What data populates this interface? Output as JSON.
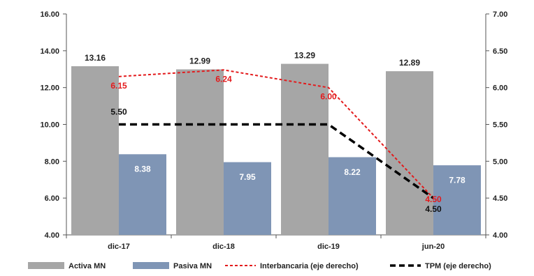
{
  "chart_data": {
    "type": "bar",
    "categories": [
      "dic-17",
      "dic-18",
      "dic-19",
      "jun-20"
    ],
    "series": [
      {
        "name": "Activa MN",
        "kind": "bar",
        "axis": "left",
        "color": "#a6a6a6",
        "label_color": "#222222",
        "label_pos": "above",
        "values": [
          13.16,
          12.99,
          13.29,
          12.89
        ],
        "labels": [
          "13.16",
          "12.99",
          "13.29",
          "12.89"
        ]
      },
      {
        "name": "Pasiva MN",
        "kind": "bar",
        "axis": "left",
        "color": "#7f95b5",
        "label_color": "#ffffff",
        "label_pos": "inside",
        "values": [
          8.38,
          7.95,
          8.22,
          7.78
        ],
        "labels": [
          "8.38",
          "7.95",
          "8.22",
          "7.78"
        ]
      },
      {
        "name": "Interbancaria (eje derecho)",
        "kind": "line",
        "axis": "right",
        "style": "dotted",
        "color": "#e31a1c",
        "label_color": "#e31a1c",
        "values": [
          6.15,
          6.24,
          6.0,
          4.5
        ],
        "labels": [
          "6.15",
          "6.24",
          "6.00",
          "4.50"
        ]
      },
      {
        "name": "TPM (eje derecho)",
        "kind": "line",
        "axis": "right",
        "style": "dashed",
        "color": "#000000",
        "label_color": "#111111",
        "values": [
          5.5,
          5.5,
          5.5,
          4.5
        ],
        "labels": [
          "5.50",
          "",
          "",
          "4.50"
        ]
      }
    ],
    "y_left": {
      "min": 4,
      "max": 16,
      "step": 2,
      "tick_labels": [
        "4.00",
        "6.00",
        "8.00",
        "10.00",
        "12.00",
        "14.00",
        "16.00"
      ]
    },
    "y_right": {
      "min": 4,
      "max": 7,
      "step": 0.5,
      "tick_labels": [
        "4.00",
        "4.50",
        "5.00",
        "5.50",
        "6.00",
        "6.50",
        "7.00"
      ]
    },
    "grid": false,
    "legend": "bottom"
  }
}
